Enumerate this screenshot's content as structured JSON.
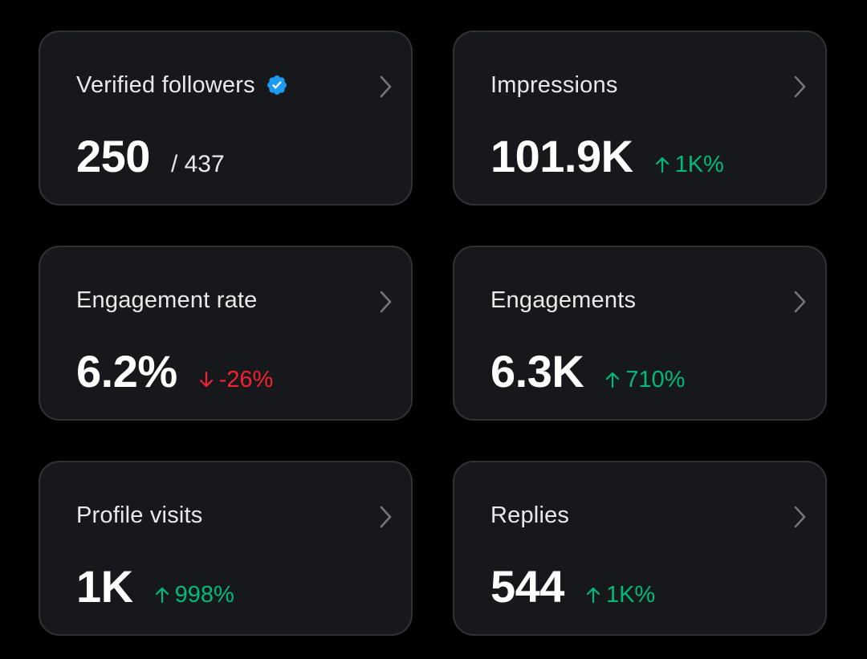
{
  "colors": {
    "background": "#000000",
    "card": "#16181c",
    "card_border": "#2f3336",
    "positive": "#00ba7c",
    "negative": "#f4212e",
    "verified": "#1d9bf0"
  },
  "cards": [
    {
      "title": "Verified followers",
      "icon": "verified-badge-icon",
      "value": "250",
      "total": "/ 437"
    },
    {
      "title": "Impressions",
      "value": "101.9K",
      "change": {
        "direction": "up",
        "text": "1K%"
      }
    },
    {
      "title": "Engagement rate",
      "value": "6.2%",
      "change": {
        "direction": "down",
        "text": "-26%"
      }
    },
    {
      "title": "Engagements",
      "value": "6.3K",
      "change": {
        "direction": "up",
        "text": "710%"
      }
    },
    {
      "title": "Profile visits",
      "value": "1K",
      "change": {
        "direction": "up",
        "text": "998%"
      }
    },
    {
      "title": "Replies",
      "value": "544",
      "change": {
        "direction": "up",
        "text": "1K%"
      }
    }
  ]
}
